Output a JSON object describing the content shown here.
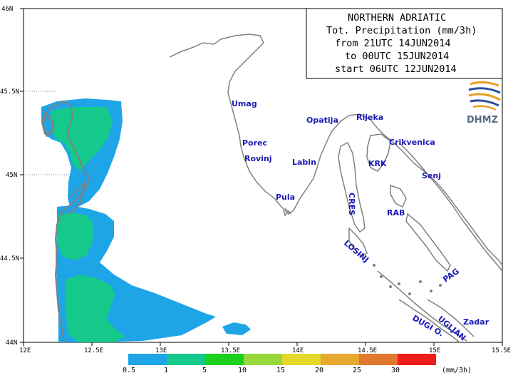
{
  "title": {
    "lines": [
      "NORTHERN ADRIATIC",
      "Tot. Precipitation (mm/3h)",
      "from 21UTC 14JUN2014",
      "to 00UTC 15JUN2014",
      "start 06UTC 12JUN2014"
    ]
  },
  "logo": {
    "text": "DHMZ",
    "icon": "dhmz-swirl-icon"
  },
  "axes": {
    "x_ticks": [
      "12E",
      "12.5E",
      "13E",
      "13.5E",
      "14E",
      "14.5E",
      "15E",
      "15.5E"
    ],
    "y_ticks": [
      "46N",
      "45.5N",
      "45N",
      "44.5N",
      "44N"
    ],
    "x_range": [
      12,
      15.5
    ],
    "y_range": [
      44,
      46
    ]
  },
  "cities": [
    {
      "name": "Umag",
      "rotate": 0
    },
    {
      "name": "Opatija",
      "rotate": 0
    },
    {
      "name": "Rijeka",
      "rotate": 0
    },
    {
      "name": "Porec",
      "rotate": 0
    },
    {
      "name": "Crikvenica",
      "rotate": 0
    },
    {
      "name": "Rovinj",
      "rotate": 0
    },
    {
      "name": "Labin",
      "rotate": 0
    },
    {
      "name": "KRK",
      "rotate": 0
    },
    {
      "name": "Senj",
      "rotate": 0
    },
    {
      "name": "Pula",
      "rotate": 0
    },
    {
      "name": "CRES",
      "rotate": 90
    },
    {
      "name": "RAB",
      "rotate": 0
    },
    {
      "name": "LOSINJ",
      "rotate": 40
    },
    {
      "name": "PAG",
      "rotate": -35
    },
    {
      "name": "DUGI O.",
      "rotate": 30
    },
    {
      "name": "UGLJAN",
      "rotate": 40
    },
    {
      "name": "Zadar",
      "rotate": 0
    }
  ],
  "legend": {
    "labels": [
      "0.5",
      "1",
      "5",
      "10",
      "15",
      "20",
      "25",
      "30"
    ],
    "unit": "(mm/3h)",
    "colors": [
      "#1ea5e8",
      "#15c98a",
      "#1ecf1e",
      "#98d83c",
      "#e4d82a",
      "#e7a830",
      "#e0792d",
      "#f01c1c"
    ]
  },
  "colors": {
    "coast": "#808080",
    "precip_low": "#1ea5e8",
    "precip_mid": "#15c98a",
    "city_label": "#1a1ab4",
    "grid": "#6a9ab0"
  }
}
